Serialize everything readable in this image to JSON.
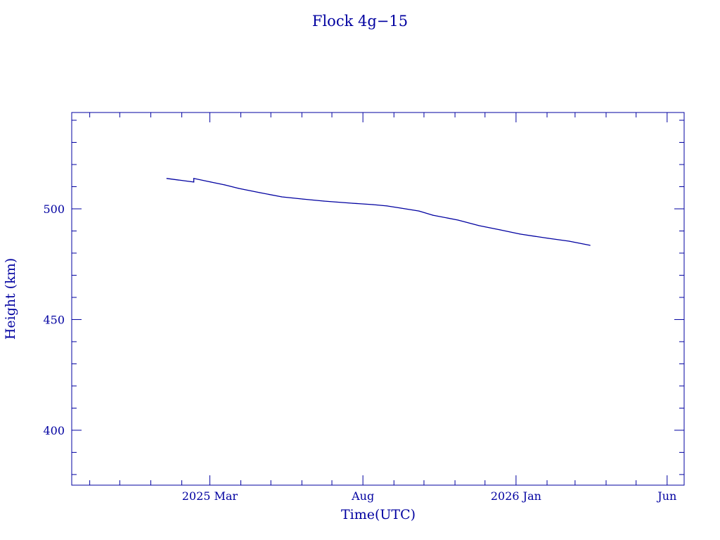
{
  "chart_data": {
    "type": "line",
    "title": "Flock 4g−15",
    "xlabel": "Time(UTC)",
    "ylabel": "Height (km)",
    "color": "#0000A0",
    "xlim": [
      "2024-10-14",
      "2026-06-18"
    ],
    "ylim": [
      375.2,
      543.5
    ],
    "grid": false,
    "x_ticks": [
      {
        "date": "2025-03-01",
        "label": "2025 Mar"
      },
      {
        "date": "2025-08-01",
        "label": "Aug"
      },
      {
        "date": "2026-01-01",
        "label": "2026 Jan"
      },
      {
        "date": "2026-06-01",
        "label": "Jun"
      }
    ],
    "y_ticks": [
      400,
      450,
      500
    ],
    "series": [
      {
        "points": [
          [
            "2025-01-17",
            513.7
          ],
          [
            "2025-02-13",
            512.1
          ],
          [
            "2025-02-13",
            513.7
          ],
          [
            "2025-03-02",
            512.1
          ],
          [
            "2025-03-16",
            510.8
          ],
          [
            "2025-03-30",
            509.2
          ],
          [
            "2025-04-20",
            507.3
          ],
          [
            "2025-05-12",
            505.4
          ],
          [
            "2025-06-02",
            504.4
          ],
          [
            "2025-06-23",
            503.5
          ],
          [
            "2025-07-22",
            502.5
          ],
          [
            "2025-08-11",
            501.9
          ],
          [
            "2025-08-25",
            501.3
          ],
          [
            "2025-09-08",
            500.3
          ],
          [
            "2025-09-26",
            499.0
          ],
          [
            "2025-10-10",
            497.1
          ],
          [
            "2025-11-04",
            494.9
          ],
          [
            "2025-11-25",
            492.4
          ],
          [
            "2025-12-16",
            490.5
          ],
          [
            "2026-01-05",
            488.6
          ],
          [
            "2026-02-02",
            486.7
          ],
          [
            "2026-02-23",
            485.4
          ],
          [
            "2026-03-16",
            483.5
          ]
        ]
      }
    ]
  }
}
